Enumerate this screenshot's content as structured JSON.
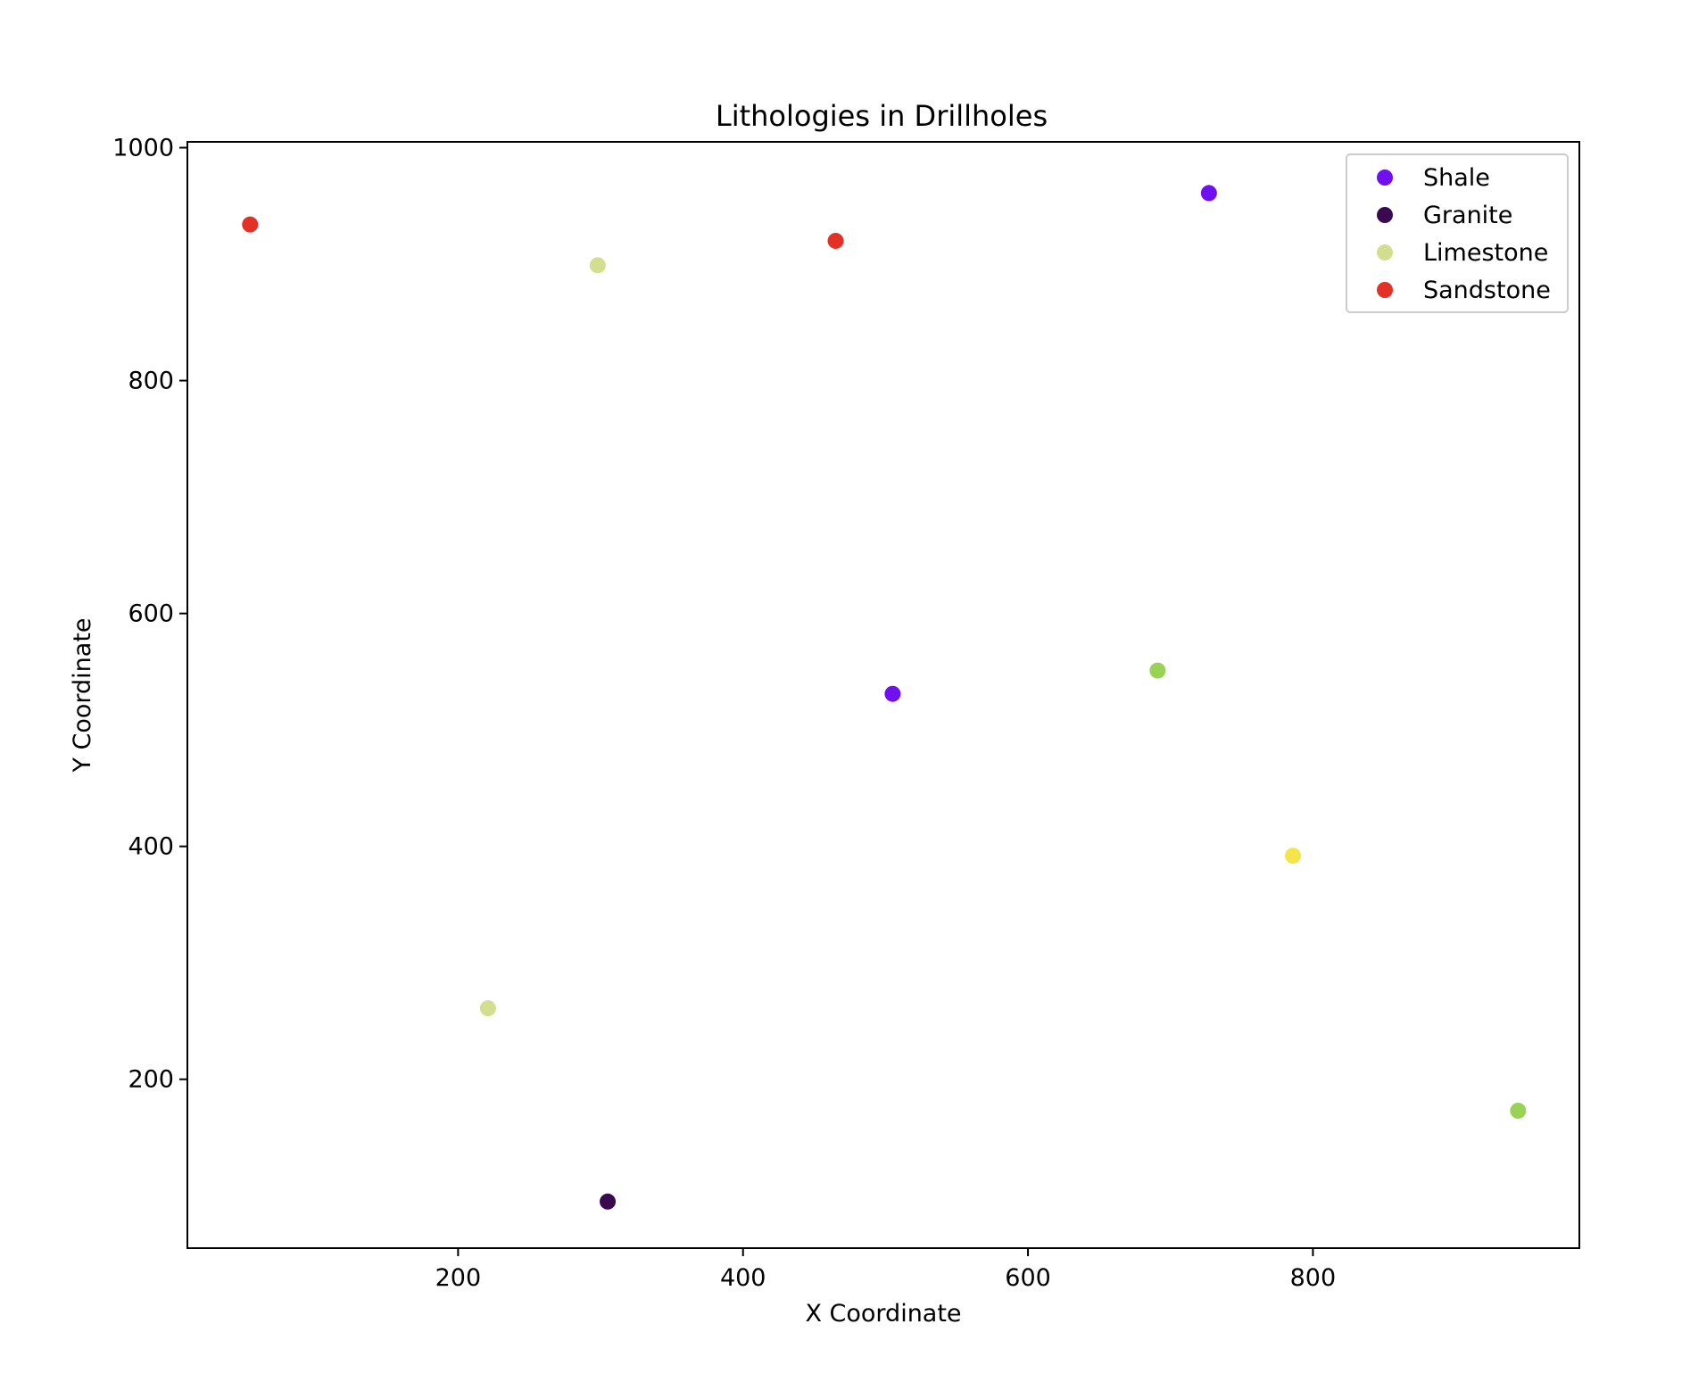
{
  "chart_data": {
    "type": "scatter",
    "title": "Lithologies in Drillholes",
    "xlabel": "X Coordinate",
    "ylabel": "Y Coordinate",
    "xlim": [
      10,
      987
    ],
    "ylim": [
      55,
      1005
    ],
    "xticks": [
      200,
      400,
      600,
      800
    ],
    "yticks": [
      200,
      400,
      600,
      800,
      1000
    ],
    "grid": false,
    "legend_position": "top-right",
    "series": [
      {
        "name": "Shale",
        "color": "#7010F0",
        "points": [
          [
            727,
            961
          ],
          [
            505,
            531
          ]
        ]
      },
      {
        "name": "Granite",
        "color": "#3A0A50",
        "points": [
          [
            305,
            95
          ]
        ]
      },
      {
        "name": "Limestone",
        "color": "#D4DE8F",
        "points": [
          [
            298,
            899
          ],
          [
            221,
            261
          ]
        ]
      },
      {
        "name": "Sandstone",
        "color": "#E43126",
        "points": [
          [
            54,
            934
          ],
          [
            465,
            920
          ]
        ]
      }
    ],
    "unlabeled_points": [
      {
        "x": 691,
        "y": 551,
        "color": "#99D355"
      },
      {
        "x": 786,
        "y": 392,
        "color": "#F5E54A"
      },
      {
        "x": 944,
        "y": 173,
        "color": "#99D355"
      }
    ]
  }
}
